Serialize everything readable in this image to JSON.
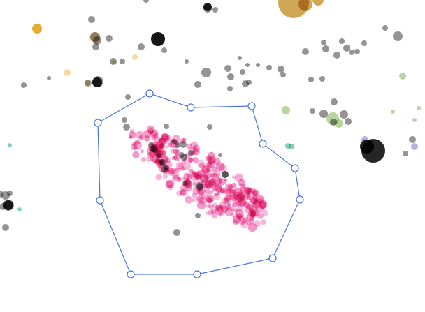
{
  "colors": {
    "background": "#ffffff",
    "selection_stroke": "#4a74d9",
    "selected_points": "#ee4fa2",
    "unselected_points": "#3d3d3d",
    "orange_points": "#e3a21a",
    "gold_points": "#c08a1f",
    "green_points": "#7bb34a",
    "teal_points": "#4fbf9a",
    "lavender_points": "#9a92d8",
    "pale_points": "#f0d38f"
  },
  "lasso": {
    "tool": "lasso-selection",
    "handle_count": 13
  }
}
